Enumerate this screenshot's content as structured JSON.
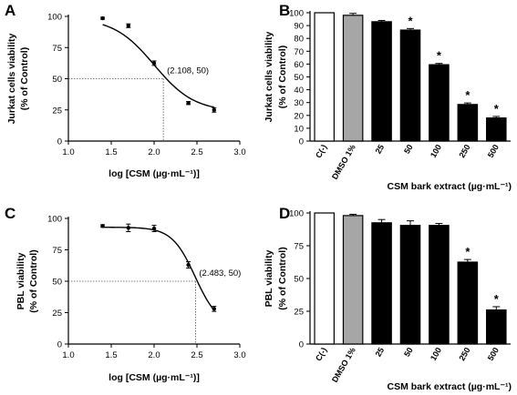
{
  "chart_data": [
    {
      "panel": "A",
      "type": "line",
      "xlabel": "log [CSM (µg·mL⁻¹)]",
      "ylabel_lines": [
        "Jurkat cells viability",
        "(% of Control)"
      ],
      "xlim": [
        1.0,
        3.0
      ],
      "ylim": [
        0,
        100
      ],
      "xticks": [
        1.0,
        1.5,
        2.0,
        2.5,
        3.0
      ],
      "yticks": [
        0,
        25,
        50,
        75,
        100
      ],
      "points": [
        {
          "x": 1.4,
          "y": 98.5,
          "err": 0.8
        },
        {
          "x": 1.7,
          "y": 92.5,
          "err": 1.5
        },
        {
          "x": 2.0,
          "y": 62.5,
          "err": 1.8
        },
        {
          "x": 2.4,
          "y": 30.5,
          "err": 1.2
        },
        {
          "x": 2.7,
          "y": 25.0,
          "err": 1.8
        }
      ],
      "fit": {
        "top": 98.8,
        "bottom": 23.5,
        "logic50": 2.0,
        "hill": 1.85
      },
      "reference": {
        "x": 2.108,
        "y": 50
      },
      "annotation": "(2.108, 50)"
    },
    {
      "panel": "B",
      "type": "bar",
      "xlabel": "CSM bark extract (µg·mL⁻¹)",
      "ylabel_lines": [
        "Jurkat cells viability",
        "(% of Control)"
      ],
      "ylim": [
        0,
        100
      ],
      "yticks": [
        0,
        10,
        20,
        30,
        40,
        50,
        60,
        70,
        80,
        90,
        100
      ],
      "categories": [
        "C(-)",
        "DMSO 1%",
        "25",
        "50",
        "100",
        "250",
        "500"
      ],
      "values": [
        100,
        98,
        93,
        86.5,
        59.5,
        28.5,
        18
      ],
      "errors": [
        0,
        1.5,
        1.0,
        1.2,
        1.0,
        1.2,
        1.2
      ],
      "fills": [
        "#ffffff",
        "#a6a6a6",
        "#000000",
        "#000000",
        "#000000",
        "#000000",
        "#000000"
      ],
      "significant": [
        false,
        false,
        false,
        true,
        true,
        true,
        true
      ],
      "star": "*"
    },
    {
      "panel": "C",
      "type": "line",
      "xlabel": "log [CSM (µg·mL⁻¹)]",
      "ylabel_lines": [
        "PBL viability",
        "(% of Control)"
      ],
      "xlim": [
        1.0,
        3.0
      ],
      "ylim": [
        0,
        100
      ],
      "xticks": [
        1.0,
        1.5,
        2.0,
        2.5,
        3.0
      ],
      "yticks": [
        0,
        25,
        50,
        75,
        100
      ],
      "points": [
        {
          "x": 1.4,
          "y": 94.0,
          "err": 1.0
        },
        {
          "x": 1.7,
          "y": 92.5,
          "err": 3.0
        },
        {
          "x": 2.0,
          "y": 92.0,
          "err": 2.5
        },
        {
          "x": 2.4,
          "y": 63.0,
          "err": 2.5
        },
        {
          "x": 2.7,
          "y": 28.0,
          "err": 2.0
        }
      ],
      "fit": {
        "top": 93.0,
        "bottom": 14.0,
        "logic50": 2.48,
        "hill": 3.2
      },
      "reference": {
        "x": 2.483,
        "y": 50
      },
      "annotation": "(2.483, 50)"
    },
    {
      "panel": "D",
      "type": "bar",
      "xlabel": "CSM bark extract (µg·mL⁻¹)",
      "ylabel_lines": [
        "PBL viability",
        "(% of Control)"
      ],
      "ylim": [
        0,
        100
      ],
      "yticks": [
        0,
        25,
        50,
        75,
        100
      ],
      "categories": [
        "C(-)",
        "DMSO 1%",
        "25",
        "50",
        "100",
        "250",
        "500"
      ],
      "values": [
        100,
        98,
        92.5,
        90.5,
        90.5,
        62.5,
        26
      ],
      "errors": [
        0,
        1.0,
        2.5,
        3.5,
        1.5,
        2.0,
        2.5
      ],
      "fills": [
        "#ffffff",
        "#a6a6a6",
        "#000000",
        "#000000",
        "#000000",
        "#000000",
        "#000000"
      ],
      "significant": [
        false,
        false,
        false,
        false,
        false,
        true,
        true
      ],
      "star": "*"
    }
  ]
}
